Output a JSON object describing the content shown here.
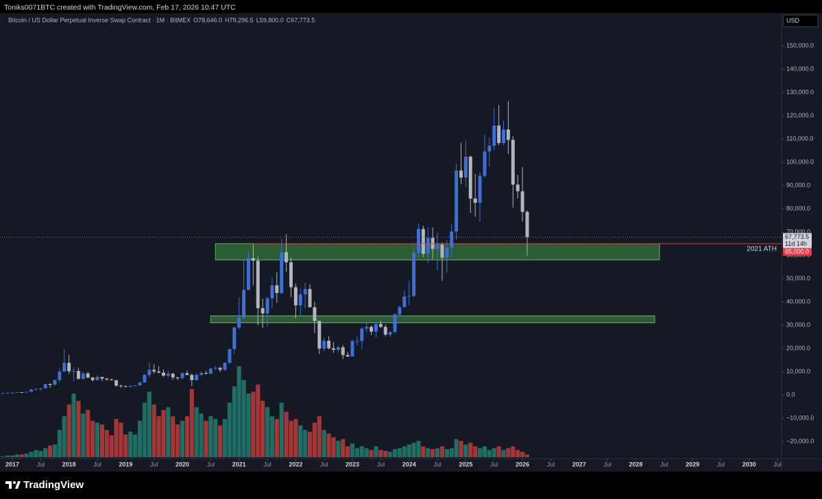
{
  "header": "Toniks0071BTC created with TradingView.com, Feb 17, 2026 10:47 UTC",
  "footer_brand": "TradingView",
  "chart_data": {
    "type": "candlestick",
    "symbol": "Bitcoin / US Dollar Perpetual Inverse Swap Contract · 1M · BitMEX",
    "ohlc_labels": [
      "O78,646.0",
      "H79,296.5",
      "L59,800.0",
      "C67,773.5"
    ],
    "currency": "USD",
    "x": [
      "2016-11",
      "2016-12",
      "2017-01",
      "2017-02",
      "2017-03",
      "2017-04",
      "2017-05",
      "2017-06",
      "2017-07",
      "2017-08",
      "2017-09",
      "2017-10",
      "2017-11",
      "2017-12",
      "2018-01",
      "2018-02",
      "2018-03",
      "2018-04",
      "2018-05",
      "2018-06",
      "2018-07",
      "2018-08",
      "2018-09",
      "2018-10",
      "2018-11",
      "2018-12",
      "2019-01",
      "2019-02",
      "2019-03",
      "2019-04",
      "2019-05",
      "2019-06",
      "2019-07",
      "2019-08",
      "2019-09",
      "2019-10",
      "2019-11",
      "2019-12",
      "2020-01",
      "2020-02",
      "2020-03",
      "2020-04",
      "2020-05",
      "2020-06",
      "2020-07",
      "2020-08",
      "2020-09",
      "2020-10",
      "2020-11",
      "2020-12",
      "2021-01",
      "2021-02",
      "2021-03",
      "2021-04",
      "2021-05",
      "2021-06",
      "2021-07",
      "2021-08",
      "2021-09",
      "2021-10",
      "2021-11",
      "2021-12",
      "2022-01",
      "2022-02",
      "2022-03",
      "2022-04",
      "2022-05",
      "2022-06",
      "2022-07",
      "2022-08",
      "2022-09",
      "2022-10",
      "2022-11",
      "2022-12",
      "2023-01",
      "2023-02",
      "2023-03",
      "2023-04",
      "2023-05",
      "2023-06",
      "2023-07",
      "2023-08",
      "2023-09",
      "2023-10",
      "2023-11",
      "2023-12",
      "2024-01",
      "2024-02",
      "2024-03",
      "2024-04",
      "2024-05",
      "2024-06",
      "2024-07",
      "2024-08",
      "2024-09",
      "2024-10",
      "2024-11",
      "2024-12",
      "2025-01",
      "2025-02",
      "2025-03",
      "2025-04",
      "2025-05",
      "2025-06",
      "2025-07",
      "2025-08",
      "2025-09",
      "2025-10",
      "2025-11",
      "2025-12",
      "2026-01",
      "2026-02"
    ],
    "open": [
      700,
      745,
      965,
      970,
      1190,
      1080,
      1350,
      2300,
      2480,
      2870,
      4700,
      4340,
      6450,
      10000,
      13800,
      10200,
      10300,
      6930,
      9240,
      7490,
      6390,
      7730,
      7010,
      6630,
      6300,
      4020,
      3740,
      3450,
      3850,
      4100,
      5350,
      8570,
      10800,
      10080,
      9600,
      8300,
      9150,
      7550,
      7200,
      9350,
      8600,
      6400,
      8650,
      9450,
      9140,
      11350,
      11650,
      10780,
      13800,
      19700,
      28990,
      33140,
      45140,
      58800,
      57700,
      37300,
      35040,
      41460,
      47100,
      43800,
      61300,
      57000,
      46300,
      38500,
      43200,
      45500,
      37700,
      31800,
      19900,
      23300,
      20050,
      19420,
      20490,
      17160,
      16540,
      23130,
      23150,
      28480,
      29250,
      27220,
      30480,
      29230,
      25940,
      26970,
      34650,
      37720,
      42280,
      42580,
      61130,
      71300,
      60640,
      67500,
      62750,
      64620,
      58970,
      63300,
      70200,
      96400,
      93400,
      102400,
      84350,
      82550,
      94200,
      104600,
      107100,
      115750,
      108250,
      114050,
      109600,
      90400,
      87500,
      78646
    ],
    "high": [
      750,
      975,
      1150,
      1210,
      1290,
      1350,
      2760,
      3000,
      2900,
      4750,
      4980,
      6450,
      11500,
      19800,
      17200,
      11800,
      11700,
      9800,
      10000,
      7770,
      8500,
      7760,
      7410,
      7000,
      6550,
      4380,
      4100,
      4200,
      4150,
      5650,
      9100,
      13900,
      13200,
      12300,
      10950,
      10500,
      9500,
      7750,
      9600,
      10500,
      9200,
      9500,
      10070,
      10400,
      11450,
      12500,
      12100,
      14100,
      19900,
      29300,
      41950,
      58350,
      61800,
      64900,
      59500,
      41300,
      42300,
      50500,
      52900,
      67000,
      69000,
      59100,
      47900,
      45800,
      48200,
      47450,
      40000,
      31950,
      24650,
      25200,
      22800,
      21100,
      21480,
      18400,
      23950,
      25250,
      29200,
      31000,
      29850,
      31400,
      31800,
      30200,
      27500,
      35200,
      38450,
      45000,
      48970,
      64000,
      73800,
      72700,
      71950,
      71980,
      70000,
      65600,
      66500,
      73600,
      99600,
      108300,
      109350,
      102750,
      95000,
      95750,
      112000,
      110500,
      123200,
      124500,
      117900,
      126200,
      111200,
      94600,
      97900,
      79296.5
    ],
    "low": [
      690,
      745,
      750,
      920,
      890,
      1060,
      1350,
      2100,
      1840,
      2700,
      2980,
      4160,
      5500,
      10000,
      9000,
      5900,
      6600,
      6430,
      7050,
      5750,
      6070,
      5880,
      6100,
      6200,
      3500,
      3120,
      3350,
      3400,
      3700,
      4080,
      5330,
      7500,
      9100,
      9400,
      7800,
      7300,
      6500,
      6450,
      6850,
      8450,
      3800,
      6150,
      8100,
      8900,
      8970,
      10800,
      9850,
      10400,
      13200,
      17600,
      28150,
      32300,
      44950,
      47000,
      30000,
      28800,
      29300,
      37300,
      39600,
      43300,
      53000,
      42000,
      32950,
      34300,
      37200,
      37600,
      26700,
      17600,
      18800,
      19550,
      18150,
      18200,
      15500,
      16300,
      16500,
      21350,
      19550,
      26950,
      25800,
      24800,
      28850,
      25160,
      24900,
      26550,
      34100,
      37600,
      38500,
      41880,
      59000,
      59200,
      56550,
      58400,
      53500,
      49000,
      52550,
      58900,
      66800,
      90500,
      89200,
      78200,
      76600,
      74400,
      93400,
      98200,
      105100,
      107300,
      107300,
      103500,
      80500,
      84400,
      74500,
      59800
    ],
    "close": [
      745,
      965,
      970,
      1190,
      1080,
      1350,
      2300,
      2480,
      2870,
      4700,
      4340,
      6450,
      10000,
      13800,
      10200,
      10300,
      6930,
      9240,
      7490,
      6390,
      7730,
      7010,
      6630,
      6300,
      4020,
      3740,
      3450,
      3850,
      4100,
      5350,
      8570,
      10800,
      10080,
      9600,
      8300,
      9150,
      7550,
      7200,
      9350,
      8600,
      6400,
      8650,
      9450,
      9140,
      11350,
      11650,
      10780,
      13800,
      19700,
      28990,
      33140,
      45140,
      58800,
      57700,
      37300,
      35040,
      41460,
      47100,
      43800,
      61300,
      57000,
      46300,
      38500,
      43200,
      45500,
      37700,
      31800,
      19900,
      23300,
      20050,
      19420,
      20490,
      17160,
      16540,
      23130,
      23150,
      28480,
      29250,
      27220,
      30480,
      29230,
      25940,
      26970,
      34650,
      37720,
      42280,
      42580,
      61130,
      71300,
      60640,
      67500,
      62750,
      64620,
      58970,
      63300,
      70200,
      96400,
      93400,
      102400,
      84350,
      82550,
      94200,
      104600,
      107100,
      115750,
      108250,
      114050,
      109600,
      90400,
      87500,
      78646,
      67773.5
    ],
    "volume": [
      1,
      2,
      2,
      3,
      3,
      4,
      6,
      8,
      7,
      10,
      13,
      14,
      30,
      45,
      58,
      70,
      62,
      48,
      52,
      40,
      38,
      36,
      30,
      24,
      42,
      38,
      25,
      28,
      25,
      40,
      60,
      72,
      58,
      45,
      52,
      55,
      45,
      36,
      40,
      45,
      75,
      55,
      48,
      40,
      45,
      42,
      35,
      42,
      60,
      78,
      100,
      85,
      70,
      72,
      80,
      62,
      55,
      45,
      42,
      60,
      50,
      40,
      42,
      35,
      30,
      28,
      38,
      45,
      30,
      26,
      22,
      18,
      20,
      12,
      15,
      10,
      12,
      10,
      8,
      12,
      8,
      7,
      6,
      9,
      10,
      12,
      14,
      16,
      18,
      12,
      10,
      9,
      10,
      12,
      9,
      10,
      20,
      18,
      14,
      16,
      12,
      10,
      12,
      8,
      10,
      12,
      8,
      10,
      12,
      8,
      6,
      3
    ],
    "vlim": [
      0,
      100
    ],
    "up_color": "#3d6fd6",
    "down_color": "#b2b5be",
    "volume_up_color": "#1f6e66",
    "volume_down_color": "#a33636",
    "xlim": [
      "2016-11",
      "2030-08"
    ],
    "xticks": [
      {
        "value": "2017-01",
        "label": "2017"
      },
      {
        "value": "2017-07",
        "label": "Jul"
      },
      {
        "value": "2018-01",
        "label": "2018"
      },
      {
        "value": "2018-07",
        "label": "Jul"
      },
      {
        "value": "2019-01",
        "label": "2019"
      },
      {
        "value": "2019-07",
        "label": "Jul"
      },
      {
        "value": "2020-01",
        "label": "2020"
      },
      {
        "value": "2020-07",
        "label": "Jul"
      },
      {
        "value": "2021-01",
        "label": "2021"
      },
      {
        "value": "2021-07",
        "label": "Jul"
      },
      {
        "value": "2022-01",
        "label": "2022"
      },
      {
        "value": "2022-07",
        "label": "Jul"
      },
      {
        "value": "2023-01",
        "label": "2023"
      },
      {
        "value": "2023-07",
        "label": "Jul"
      },
      {
        "value": "2024-01",
        "label": "2024"
      },
      {
        "value": "2024-07",
        "label": "Jul"
      },
      {
        "value": "2025-01",
        "label": "2025"
      },
      {
        "value": "2025-07",
        "label": "Jul"
      },
      {
        "value": "2026-01",
        "label": "2026"
      },
      {
        "value": "2026-07",
        "label": "Jul"
      },
      {
        "value": "2027-01",
        "label": "2027"
      },
      {
        "value": "2027-07",
        "label": "Jul"
      },
      {
        "value": "2028-01",
        "label": "2028"
      },
      {
        "value": "2028-07",
        "label": "Jul"
      },
      {
        "value": "2029-01",
        "label": "2029"
      },
      {
        "value": "2029-07",
        "label": "Jul"
      },
      {
        "value": "2030-01",
        "label": "2030"
      },
      {
        "value": "2030-07",
        "label": "Jul"
      }
    ],
    "ylim": [
      -27350,
      166750
    ],
    "yticks": [
      {
        "value": 150000,
        "label": "150,000.0"
      },
      {
        "value": 140000,
        "label": "140,000.0"
      },
      {
        "value": 130000,
        "label": "130,000.0"
      },
      {
        "value": 120000,
        "label": "120,000.0"
      },
      {
        "value": 110000,
        "label": "110,000.0"
      },
      {
        "value": 100000,
        "label": "100,000.0"
      },
      {
        "value": 90000,
        "label": "90,000.0"
      },
      {
        "value": 80000,
        "label": "80,000.0"
      },
      {
        "value": 70000,
        "label": "70,000.0"
      },
      {
        "value": 60000,
        "label": "60,000.0"
      },
      {
        "value": 50000,
        "label": "50,000.0"
      },
      {
        "value": 40000,
        "label": "40,000.0"
      },
      {
        "value": 30000,
        "label": "30,000.0"
      },
      {
        "value": 20000,
        "label": "20,000.0"
      },
      {
        "value": 10000,
        "label": "10,000.0"
      },
      {
        "value": 0,
        "label": "0.0"
      },
      {
        "value": -10000,
        "label": "−10,000.0"
      },
      {
        "value": -20000,
        "label": "−20,000.0"
      }
    ],
    "zones": [
      {
        "start": "2020-08",
        "end": "2028-06",
        "low": 58000,
        "high": 65000
      },
      {
        "start": "2020-07",
        "end": "2028-05",
        "low": 31000,
        "high": 34000
      }
    ],
    "zone_color": "#2e6b35",
    "last_price": {
      "value": 67773.5,
      "label": "67,773.5",
      "countdown": "11d 14h"
    },
    "level": {
      "value": 65000,
      "label": "65,000.0",
      "start": "2021-04",
      "color": "#f23645",
      "annotation": "2021 ATH"
    }
  }
}
